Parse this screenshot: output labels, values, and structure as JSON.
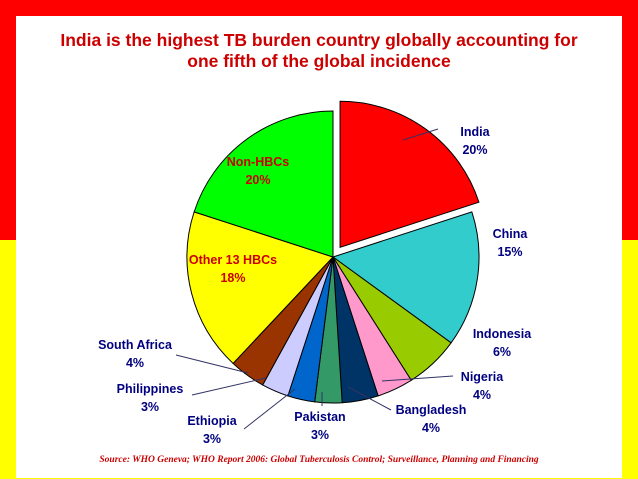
{
  "slide": {
    "title_lines": [
      "India is the highest TB burden country globally accounting for",
      "one fifth of the global incidence"
    ],
    "source": "Source: WHO Geneva; WHO Report 2006: Global Tuberculosis Control; Surveillance, Planning and Financing",
    "colors": {
      "frame_top": "#ff0000",
      "frame_bottom": "#ffff00",
      "title": "#cc0000"
    }
  },
  "chart_data": {
    "type": "pie",
    "title": "India is the highest TB burden country globally accounting for one fifth of the global incidence",
    "unit": "%",
    "exploded": "India",
    "start": "12 o'clock, clockwise",
    "slices": [
      {
        "name": "India",
        "value": 20,
        "label": "20%",
        "color": "#ff0000"
      },
      {
        "name": "China",
        "value": 15,
        "label": "15%",
        "color": "#33cccc"
      },
      {
        "name": "Indonesia",
        "value": 6,
        "label": "6%",
        "color": "#99cc00"
      },
      {
        "name": "Nigeria",
        "value": 4,
        "label": "4%",
        "color": "#ff99cc"
      },
      {
        "name": "Bangladesh",
        "value": 4,
        "label": "4%",
        "color": "#003366"
      },
      {
        "name": "Pakistan",
        "value": 3,
        "label": "3%",
        "color": "#339966"
      },
      {
        "name": "Ethiopia",
        "value": 3,
        "label": "3%",
        "color": "#0066cc"
      },
      {
        "name": "Philippines",
        "value": 3,
        "label": "3%",
        "color": "#ccccff"
      },
      {
        "name": "South Africa",
        "value": 4,
        "label": "4%",
        "color": "#993300"
      },
      {
        "name": "Other 13 HBCs",
        "value": 18,
        "label": "18%",
        "color": "#ffff00"
      },
      {
        "name": "Non-HBCs",
        "value": 20,
        "label": "20%",
        "color": "#00ff00"
      }
    ]
  }
}
